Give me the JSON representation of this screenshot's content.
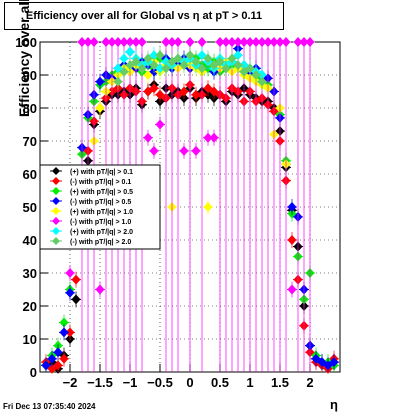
{
  "chart_data": {
    "type": "scatter",
    "title": "Efficiency over all for Global vs    η at pT > 0.11",
    "xlabel": "η",
    "ylabel": "Efficiency over all (%)",
    "xlim": [
      -2.5,
      2.5
    ],
    "ylim": [
      0,
      100
    ],
    "grid": true,
    "legend_position": "center-left",
    "xticks": [
      "−2",
      "−1.5",
      "−1",
      "−0.5",
      "0",
      "0.5",
      "1",
      "1.5",
      "2"
    ],
    "xtick_values": [
      -2,
      -1.5,
      -1,
      -0.5,
      0,
      0.5,
      1,
      1.5,
      2
    ],
    "yticks": [
      "0",
      "10",
      "20",
      "30",
      "40",
      "50",
      "60",
      "70",
      "80",
      "90",
      "100"
    ],
    "ytick_values": [
      0,
      10,
      20,
      30,
      40,
      50,
      60,
      70,
      80,
      90,
      100
    ],
    "series": [
      {
        "name": "(+) with pT/|q| > 0.1",
        "color": "#000000",
        "x": [
          -2.4,
          -2.3,
          -2.2,
          -2.1,
          -2.0,
          -1.9,
          -1.8,
          -1.7,
          -1.6,
          -1.5,
          -1.4,
          -1.3,
          -1.2,
          -1.1,
          -1.0,
          -0.9,
          -0.8,
          -0.7,
          -0.6,
          -0.5,
          -0.4,
          -0.3,
          -0.2,
          -0.1,
          0.0,
          0.1,
          0.2,
          0.3,
          0.4,
          0.5,
          0.6,
          0.7,
          0.8,
          0.9,
          1.0,
          1.1,
          1.2,
          1.3,
          1.4,
          1.5,
          1.6,
          1.7,
          1.8,
          1.9,
          2.0,
          2.1,
          2.2,
          2.3,
          2.4
        ],
        "y": [
          2,
          3,
          1,
          5,
          10,
          22,
          43,
          64,
          75,
          79,
          82,
          84,
          84,
          85,
          84,
          86,
          81,
          85,
          87,
          82,
          86,
          84,
          85,
          83,
          86,
          83,
          85,
          84,
          83,
          84,
          82,
          85,
          84,
          86,
          84,
          83,
          82,
          82,
          80,
          73,
          62,
          49,
          38,
          20,
          8,
          4,
          3,
          2,
          3
        ]
      },
      {
        "name": "(-) with pT/|q| > 0.1",
        "color": "#ff0000",
        "x": [
          -2.4,
          -2.3,
          -2.2,
          -2.1,
          -2.0,
          -1.9,
          -1.8,
          -1.7,
          -1.6,
          -1.5,
          -1.4,
          -1.3,
          -1.2,
          -1.1,
          -1.0,
          -0.9,
          -0.8,
          -0.7,
          -0.6,
          -0.5,
          -0.4,
          -0.3,
          -0.2,
          -0.1,
          0.0,
          0.1,
          0.2,
          0.3,
          0.4,
          0.5,
          0.6,
          0.7,
          0.8,
          0.9,
          1.0,
          1.1,
          1.2,
          1.3,
          1.4,
          1.5,
          1.6,
          1.7,
          1.8,
          1.9,
          2.0,
          2.1,
          2.2,
          2.3,
          2.4
        ],
        "y": [
          3,
          1,
          2,
          4,
          12,
          28,
          50,
          67,
          76,
          80,
          83,
          85,
          86,
          84,
          86,
          85,
          82,
          85,
          86,
          84,
          83,
          86,
          84,
          85,
          87,
          84,
          84,
          86,
          85,
          84,
          83,
          86,
          85,
          82,
          85,
          82,
          83,
          81,
          79,
          70,
          58,
          40,
          28,
          14,
          6,
          3,
          2,
          1,
          4
        ]
      },
      {
        "name": "(+) with pT/|q| > 0.5",
        "color": "#00ee00",
        "x": [
          -2.4,
          -2.3,
          -2.2,
          -2.1,
          -2.0,
          -1.9,
          -1.8,
          -1.7,
          -1.6,
          -1.5,
          -1.4,
          -1.3,
          -1.2,
          -1.1,
          -1.0,
          -0.9,
          -0.8,
          -0.7,
          -0.6,
          -0.5,
          -0.4,
          -0.3,
          -0.2,
          -0.1,
          0.0,
          0.1,
          0.2,
          0.3,
          0.4,
          0.5,
          0.6,
          0.7,
          0.8,
          0.9,
          1.0,
          1.1,
          1.2,
          1.3,
          1.4,
          1.5,
          1.6,
          1.7,
          1.8,
          1.9,
          2.0,
          2.1,
          2.2,
          2.3,
          2.4
        ],
        "y": [
          2,
          5,
          8,
          15,
          25,
          48,
          66,
          77,
          82,
          87,
          88,
          90,
          91,
          92,
          92,
          93,
          91,
          93,
          92,
          95,
          92,
          94,
          93,
          94,
          92,
          95,
          93,
          92,
          94,
          91,
          92,
          93,
          92,
          91,
          91,
          90,
          89,
          87,
          85,
          78,
          64,
          48,
          35,
          22,
          30,
          5,
          3,
          3,
          2
        ]
      },
      {
        "name": "(-) with pT/|q| > 0.5",
        "color": "#0000ff",
        "x": [
          -2.4,
          -2.3,
          -2.2,
          -2.1,
          -2.0,
          -1.9,
          -1.8,
          -1.7,
          -1.6,
          -1.5,
          -1.4,
          -1.3,
          -1.2,
          -1.1,
          -1.0,
          -0.9,
          -0.8,
          -0.7,
          -0.6,
          -0.5,
          -0.4,
          -0.3,
          -0.2,
          -0.1,
          0.0,
          0.1,
          0.2,
          0.3,
          0.4,
          0.5,
          0.6,
          0.7,
          0.8,
          0.9,
          1.0,
          1.1,
          1.2,
          1.3,
          1.4,
          1.5,
          1.6,
          1.7,
          1.8,
          1.9,
          2.0,
          2.1,
          2.2,
          2.3,
          2.4
        ],
        "y": [
          2,
          4,
          6,
          12,
          24,
          46,
          68,
          78,
          84,
          88,
          90,
          89,
          92,
          93,
          97,
          92,
          94,
          93,
          91,
          92,
          95,
          92,
          93,
          95,
          92,
          93,
          92,
          94,
          91,
          93,
          92,
          94,
          98,
          93,
          91,
          92,
          90,
          89,
          85,
          77,
          63,
          50,
          47,
          25,
          8,
          4,
          3,
          2,
          3
        ]
      },
      {
        "name": "(+) with pT/|q| > 1.0",
        "color": "#ffff00",
        "x": [
          -1.6,
          -1.5,
          -1.4,
          -1.3,
          -1.2,
          -1.1,
          -1.0,
          -0.9,
          -0.8,
          -0.7,
          -0.6,
          -0.5,
          -0.4,
          -0.3,
          -0.2,
          -0.1,
          0.0,
          0.1,
          0.2,
          0.3,
          0.4,
          0.5,
          0.6,
          0.7,
          0.8,
          0.9,
          1.0,
          1.1,
          1.2,
          1.3,
          1.4,
          1.5,
          1.6
        ],
        "y": [
          70,
          80,
          85,
          88,
          90,
          92,
          91,
          93,
          92,
          90,
          94,
          91,
          93,
          50,
          92,
          94,
          93,
          92,
          91,
          50,
          93,
          92,
          94,
          91,
          92,
          90,
          89,
          88,
          87,
          86,
          72,
          80,
          63
        ]
      },
      {
        "name": "(-) with pT/|q| > 1.0",
        "color": "#ff00ff",
        "x": [
          -2.0,
          -1.8,
          -1.7,
          -1.6,
          -1.5,
          -1.4,
          -1.3,
          -1.2,
          -1.1,
          -1.0,
          -0.9,
          -0.8,
          -0.7,
          -0.6,
          -0.5,
          -0.4,
          -0.3,
          -0.2,
          -0.1,
          0.0,
          0.1,
          0.2,
          0.3,
          0.4,
          0.5,
          0.6,
          0.7,
          0.8,
          0.9,
          1.0,
          1.1,
          1.2,
          1.3,
          1.4,
          1.5,
          1.6,
          1.7,
          1.8,
          1.9,
          2.0
        ],
        "y": [
          30,
          100,
          100,
          100,
          25,
          100,
          100,
          100,
          100,
          100,
          100,
          100,
          71,
          67,
          75,
          100,
          100,
          100,
          67,
          100,
          67,
          100,
          71,
          71,
          100,
          100,
          100,
          100,
          100,
          100,
          100,
          100,
          100,
          100,
          100,
          100,
          25,
          100,
          100,
          100
        ]
      },
      {
        "name": "(+) with pT/|q| > 2.0",
        "color": "#00ffff",
        "x": [
          -1.2,
          -1.1,
          -1.0,
          -0.9,
          -0.8,
          -0.7,
          -0.6,
          -0.5,
          -0.4,
          -0.3,
          -0.2,
          -0.1,
          0.0,
          0.1,
          0.2,
          0.3,
          0.4,
          0.5,
          0.6,
          0.7,
          0.8,
          0.9,
          1.0,
          1.1,
          1.2
        ],
        "y": [
          92,
          95,
          97,
          95,
          93,
          94,
          96,
          92,
          94,
          93,
          95,
          94,
          95,
          93,
          96,
          94,
          92,
          95,
          93,
          94,
          96,
          93,
          92,
          91,
          90
        ]
      },
      {
        "name": "(-) with pT/|q| > 2.0",
        "color": "#66cc66",
        "x": [
          -1.2,
          -1.1,
          -1.0,
          -0.9,
          -0.8,
          -0.7,
          -0.6,
          -0.5,
          -0.4,
          -0.3,
          -0.2,
          -0.1,
          0.0,
          0.1,
          0.2,
          0.3,
          0.4,
          0.5,
          0.6,
          0.7,
          0.8,
          0.9,
          1.0,
          1.1,
          1.2
        ],
        "y": [
          88,
          91,
          93,
          94,
          92,
          95,
          93,
          96,
          92,
          94,
          95,
          93,
          96,
          94,
          92,
          95,
          93,
          94,
          92,
          95,
          93,
          91,
          92,
          90,
          88
        ]
      }
    ]
  },
  "footer": {
    "timestamp": "Fri Dec 13 07:35:40 2024"
  }
}
